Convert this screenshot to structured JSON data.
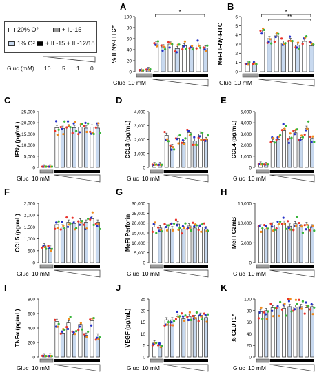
{
  "legend": {
    "o2_20": "20% O",
    "o2_1": "1% O",
    "il15": "+ IL-15",
    "il15_12_18": "+ IL-15 + IL-12/18",
    "gluc_label": "Gluc (mM)",
    "gluc_values": [
      "10",
      "5",
      "1",
      "0"
    ],
    "colors": {
      "o2_20": "#ffffff",
      "o2_1": "#c8d9ef",
      "il15": "#9a9a9a",
      "il15_12_18": "#000000"
    }
  },
  "footer": {
    "gluc": "Gluc",
    "mm": "10 mM"
  },
  "dot_colors": [
    "#e8312a",
    "#2531c9",
    "#f08a1d",
    "#38b53a"
  ],
  "chart_data": [
    {
      "id": "A",
      "type": "bar",
      "ylabel": "% IFNγ-FITC⁺",
      "ylim": [
        0,
        100
      ],
      "ticks": [
        0,
        20,
        40,
        60,
        80,
        100
      ],
      "values": [
        3,
        4,
        50,
        45,
        50,
        42,
        47,
        44,
        48,
        43
      ],
      "sig": [
        {
          "from": 2,
          "to": 9,
          "label": "*"
        }
      ]
    },
    {
      "id": "B",
      "type": "bar",
      "ylabel": "MeFI IFNγ-FITC",
      "ylim": [
        0,
        6
      ],
      "ticks": [
        0,
        1,
        2,
        3,
        4,
        5,
        6
      ],
      "values": [
        0.9,
        0.9,
        4.3,
        3.6,
        3.9,
        3.1,
        3.4,
        2.9,
        3.3,
        2.8
      ],
      "sig": [
        {
          "from": 2,
          "to": 9,
          "label": "*"
        },
        {
          "from": 3,
          "to": 9,
          "label": "**"
        }
      ]
    },
    {
      "id": "C",
      "type": "bar",
      "ylabel": "IFNγ (pg/mL)",
      "ylim": [
        0,
        25000
      ],
      "ticks": [
        0,
        5000,
        10000,
        15000,
        20000,
        25000
      ],
      "values": [
        200,
        200,
        17800,
        17500,
        18200,
        17800,
        18000,
        17600,
        18100,
        17600
      ],
      "sig": []
    },
    {
      "id": "D",
      "type": "bar",
      "ylabel": "CCL3 (pg/mL)",
      "ylim": [
        0,
        4000
      ],
      "ticks": [
        0,
        1000,
        2000,
        3000,
        4000
      ],
      "values": [
        200,
        200,
        2300,
        1500,
        2100,
        1800,
        2500,
        1900,
        2400,
        2000
      ],
      "sig": []
    },
    {
      "id": "E",
      "type": "bar",
      "ylabel": "CCL4 (pg/mL)",
      "ylim": [
        0,
        5000
      ],
      "ticks": [
        0,
        1000,
        2000,
        3000,
        4000,
        5000
      ],
      "values": [
        300,
        250,
        2300,
        2500,
        3300,
        2600,
        3100,
        2500,
        3500,
        2600
      ],
      "sig": []
    },
    {
      "id": "F",
      "type": "bar",
      "ylabel": "CCL5 (pg/mL)",
      "ylim": [
        0,
        2500
      ],
      "ticks": [
        0,
        500,
        1000,
        1500,
        2000,
        2500
      ],
      "values": [
        700,
        600,
        1600,
        1500,
        1700,
        1650,
        1750,
        1700,
        1850,
        1700
      ],
      "sig": []
    },
    {
      "id": "G",
      "type": "bar",
      "ylabel": "MeFI Perforin",
      "ylim": [
        0,
        30000
      ],
      "ticks": [
        0,
        5000,
        10000,
        15000,
        20000,
        25000,
        30000
      ],
      "values": [
        18000,
        17500,
        18000,
        17000,
        19500,
        17000,
        18500,
        17500,
        18000,
        17000
      ],
      "sig": []
    },
    {
      "id": "H",
      "type": "bar",
      "ylabel": "MeFI GzmB",
      "ylim": [
        0,
        15000
      ],
      "ticks": [
        0,
        5000,
        10000,
        15000
      ],
      "values": [
        9000,
        8500,
        9500,
        9000,
        10000,
        9200,
        9800,
        9000,
        9600,
        9000
      ],
      "sig": []
    },
    {
      "id": "I",
      "type": "bar",
      "ylabel": "TNFα (pg/mL)",
      "ylim": [
        0,
        800
      ],
      "ticks": [
        0,
        200,
        400,
        600,
        800
      ],
      "values": [
        15,
        15,
        490,
        330,
        470,
        310,
        450,
        300,
        500,
        290
      ],
      "sig": []
    },
    {
      "id": "J",
      "type": "bar",
      "ylabel": "VEGF (pg/mL)",
      "ylim": [
        0,
        25
      ],
      "ticks": [
        0,
        5,
        10,
        15,
        20,
        25
      ],
      "values": [
        6,
        5,
        16,
        16,
        17.5,
        16.5,
        17.5,
        17,
        18,
        17
      ],
      "sig": []
    },
    {
      "id": "K",
      "type": "bar",
      "ylabel": "% GLUT1⁺",
      "ylim": [
        0,
        100
      ],
      "ticks": [
        0,
        20,
        40,
        60,
        80,
        100
      ],
      "values": [
        78,
        80,
        85,
        86,
        84,
        87,
        86,
        87,
        85,
        87
      ],
      "sig": []
    }
  ]
}
